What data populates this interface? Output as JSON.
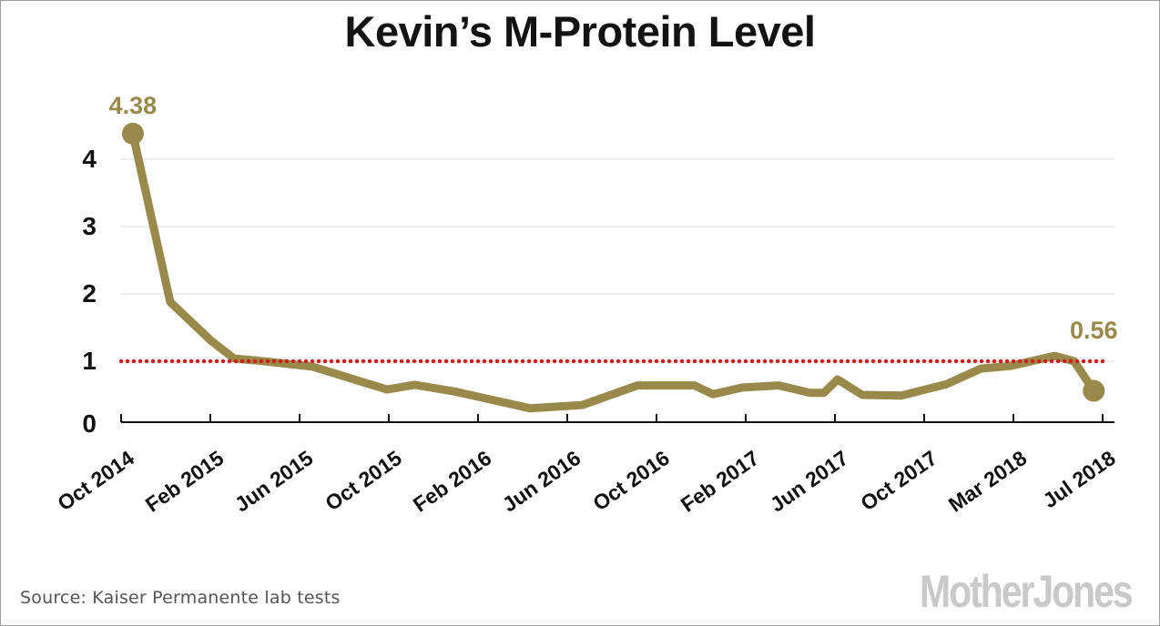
{
  "title": "Kevin’s M-Protein Level",
  "source": {
    "text": "Source: Kaiser Permanente lab tests"
  },
  "logo_text": "MotherJones",
  "colors": {
    "series_gold": "#998a4c",
    "threshold_red": "#cc1f1a",
    "grid_gray": "#e2e2e2",
    "axis_black": "#111111",
    "label_black": "#111111",
    "source_gray": "#555555",
    "logo_gray": "#c9c9c9"
  },
  "chart_data": {
    "type": "line",
    "title": "Kevin’s M-Protein Level",
    "xlabel": "",
    "ylabel": "",
    "ylim": [
      0,
      4.6
    ],
    "grid": "horizontal",
    "legend": "none",
    "y_ticks": [
      0,
      1,
      2,
      3,
      4
    ],
    "x_tick_labels": [
      "Oct 2014",
      "Feb 2015",
      "Jun 2015",
      "Oct 2015",
      "Feb 2016",
      "Jun 2016",
      "Oct 2016",
      "Feb 2017",
      "Jun 2017",
      "Oct 2017",
      "Mar 2018",
      "Jul 2018"
    ],
    "threshold_line": {
      "value": 1.0,
      "style": "dotted"
    },
    "series": [
      {
        "name": "M-Protein level",
        "points": [
          [
            0.012,
            4.38
          ],
          [
            0.05,
            1.88
          ],
          [
            0.092,
            1.3
          ],
          [
            0.115,
            1.04
          ],
          [
            0.139,
            1.01
          ],
          [
            0.195,
            0.92
          ],
          [
            0.271,
            0.58
          ],
          [
            0.299,
            0.65
          ],
          [
            0.34,
            0.55
          ],
          [
            0.417,
            0.3
          ],
          [
            0.47,
            0.35
          ],
          [
            0.526,
            0.64
          ],
          [
            0.584,
            0.64
          ],
          [
            0.603,
            0.51
          ],
          [
            0.633,
            0.61
          ],
          [
            0.67,
            0.64
          ],
          [
            0.702,
            0.53
          ],
          [
            0.716,
            0.53
          ],
          [
            0.73,
            0.73
          ],
          [
            0.755,
            0.5
          ],
          [
            0.795,
            0.49
          ],
          [
            0.841,
            0.66
          ],
          [
            0.876,
            0.89
          ],
          [
            0.906,
            0.93
          ],
          [
            0.951,
            1.08
          ],
          [
            0.971,
            1.0
          ],
          [
            0.991,
            0.56
          ]
        ]
      }
    ],
    "endpoint_markers": true,
    "annotations": [
      {
        "text": "4.38",
        "x": 0.012,
        "value": 4.38,
        "dy": -46
      },
      {
        "text": "0.56",
        "x": 0.991,
        "value": 0.56,
        "dy": -82
      }
    ]
  }
}
